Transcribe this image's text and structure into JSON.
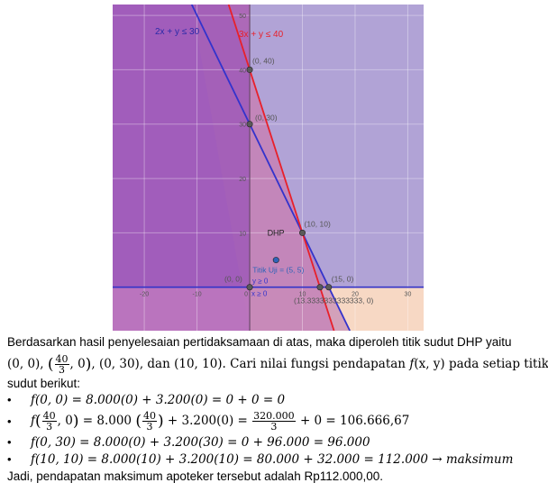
{
  "chart_data": {
    "type": "scatter",
    "xlim": [
      -26,
      33
    ],
    "ylim": [
      -8,
      52
    ],
    "x_ticks": [
      -20,
      -10,
      0,
      10,
      20,
      30
    ],
    "y_ticks": [
      10,
      20,
      30,
      40,
      50
    ],
    "grid": true,
    "constraints": [
      {
        "label": "2x + y ≤ 30",
        "a": 2,
        "b": 1,
        "c": 30,
        "color": "#3333cc"
      },
      {
        "label": "3x + y ≤ 40",
        "a": 3,
        "b": 1,
        "c": 40,
        "color": "#e8202a"
      },
      {
        "label": "x ≥ 0"
      },
      {
        "label": "y ≥ 0"
      }
    ],
    "points": [
      {
        "label": "(0, 0)",
        "x": 0,
        "y": 0
      },
      {
        "label": "(0, 40)",
        "x": 0,
        "y": 40
      },
      {
        "label": "(0, 30)",
        "x": 0,
        "y": 30
      },
      {
        "label": "(10, 10)",
        "x": 10,
        "y": 10
      },
      {
        "label": "(15, 0)",
        "x": 15,
        "y": 0
      },
      {
        "label": "(13.3333333333333, 0)",
        "x": 13.3333333333333,
        "y": 0
      },
      {
        "label": "Titik Uji = (5, 5)",
        "x": 5,
        "y": 5
      }
    ],
    "annotations": [
      {
        "text": "DHP",
        "x": 3,
        "y": 10
      }
    ]
  },
  "text": {
    "p1": "Berdasarkan hasil penyelesaian pertidaksamaan di atas, maka diperoleh titik sudut DHP yaitu",
    "p2_a": "(0, 0), ",
    "p2_b": ", (0, 30), dan (10, 10). Cari nilai fungsi pendapatan ",
    "p2_c": "f",
    "p2_d": "(x, y)",
    "p2_e": " pada setiap titik",
    "p3": "sudut berikut:",
    "b1": "f(0, 0) = 8.000(0) + 3.200(0) = 0 + 0 = 0",
    "b2_a": "f",
    "b2_b": " = 8.000 ",
    "b2_c": " + 3.200(0) = ",
    "b2_d": " + 0 = 106.666,67",
    "b3": "f(0, 30) = 8.000(0) + 3.200(30) = 0 + 96.000 = 96.000",
    "b4": "f(10, 10) = 8.000(10) + 3.200(10) = 80.000 + 32.000 = 112.000 → maksimum",
    "conclusion": "Jadi, pendapatan maksimum apoteker tersebut adalah Rp112.000,00.",
    "frac40": {
      "num": "40",
      "den": "3"
    },
    "frac320": {
      "num": "320.000",
      "den": "3"
    },
    "zero": "0"
  }
}
